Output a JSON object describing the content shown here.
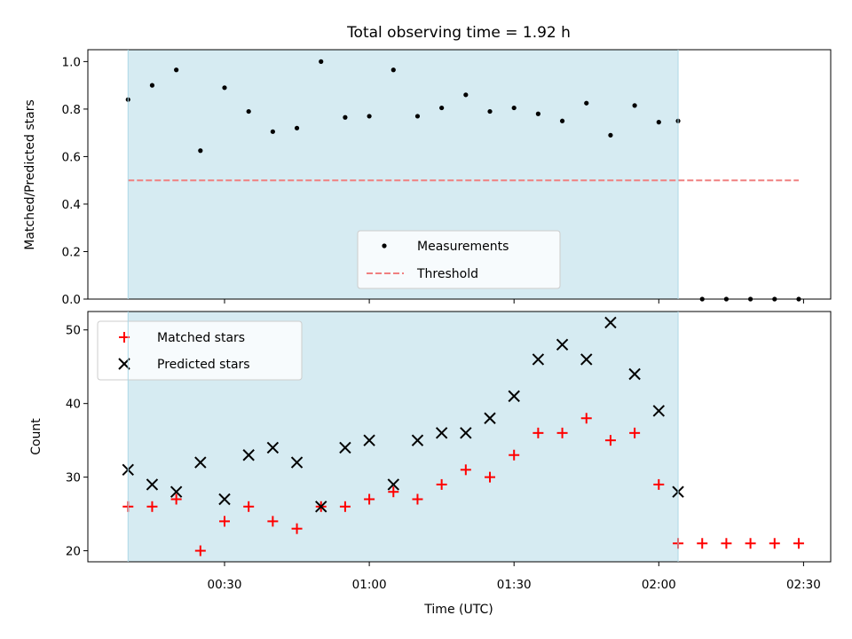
{
  "chart_data": [
    {
      "type": "scatter",
      "title": "Total observing time = 1.92 h",
      "ylabel": "Matched/Predicted stars",
      "ylim": [
        0,
        1.05
      ],
      "yticks": [
        0.0,
        0.2,
        0.4,
        0.6,
        0.8,
        1.0
      ],
      "ytick_labels": [
        "0.0",
        "0.2",
        "0.4",
        "0.6",
        "0.8",
        "1.0"
      ],
      "shaded_range_minutes": [
        10,
        124
      ],
      "shade_color": "#add8e6",
      "legend_position": "lower center",
      "threshold": {
        "name": "Threshold",
        "y": 0.5,
        "x_range_minutes": [
          10,
          149
        ],
        "color": "#f08080"
      },
      "series": [
        {
          "name": "Measurements",
          "color": "#000000",
          "x_minutes": [
            10,
            15,
            20,
            25,
            30,
            35,
            40,
            45,
            50,
            55,
            60,
            65,
            70,
            75,
            80,
            85,
            90,
            95,
            100,
            105,
            110,
            115,
            120,
            124,
            129,
            134,
            139,
            144,
            149
          ],
          "y": [
            0.84,
            0.9,
            0.965,
            0.625,
            0.89,
            0.79,
            0.705,
            0.72,
            1.0,
            0.765,
            0.77,
            0.965,
            0.77,
            0.805,
            0.86,
            0.79,
            0.805,
            0.78,
            0.75,
            0.825,
            0.69,
            0.815,
            0.745,
            0.75,
            0.0,
            0.0,
            0.0,
            0.0,
            0.0
          ]
        }
      ]
    },
    {
      "type": "scatter",
      "xlabel": "Time (UTC)",
      "ylabel": "Count",
      "ylim": [
        18.5,
        52.5
      ],
      "yticks": [
        20,
        30,
        40,
        50
      ],
      "ytick_labels": [
        "20",
        "30",
        "40",
        "50"
      ],
      "xticks_minutes": [
        30,
        60,
        90,
        120,
        150
      ],
      "xtick_labels": [
        "00:30",
        "01:00",
        "01:30",
        "02:00",
        "02:30"
      ],
      "shaded_range_minutes": [
        10,
        124
      ],
      "shade_color": "#add8e6",
      "legend_position": "upper left",
      "series": [
        {
          "name": "Matched stars",
          "marker": "+",
          "color": "#ff0000",
          "x_minutes": [
            10,
            15,
            20,
            25,
            30,
            35,
            40,
            45,
            50,
            55,
            60,
            65,
            70,
            75,
            80,
            85,
            90,
            95,
            100,
            105,
            110,
            115,
            120,
            124,
            129,
            134,
            139,
            144,
            149
          ],
          "y": [
            26,
            26,
            27,
            20,
            24,
            26,
            24,
            23,
            26,
            26,
            27,
            28,
            27,
            29,
            31,
            30,
            33,
            36,
            36,
            38,
            35,
            36,
            29,
            21,
            21,
            21,
            21,
            21,
            21
          ]
        },
        {
          "name": "Predicted stars",
          "marker": "x",
          "color": "#000000",
          "x_minutes": [
            10,
            15,
            20,
            25,
            30,
            35,
            40,
            45,
            50,
            55,
            60,
            65,
            70,
            75,
            80,
            85,
            90,
            95,
            100,
            105,
            110,
            115,
            120,
            124
          ],
          "y": [
            31,
            29,
            28,
            32,
            27,
            33,
            34,
            32,
            26,
            34,
            35,
            29,
            35,
            36,
            36,
            38,
            41,
            46,
            48,
            46,
            51,
            44,
            39,
            28
          ]
        }
      ]
    }
  ]
}
